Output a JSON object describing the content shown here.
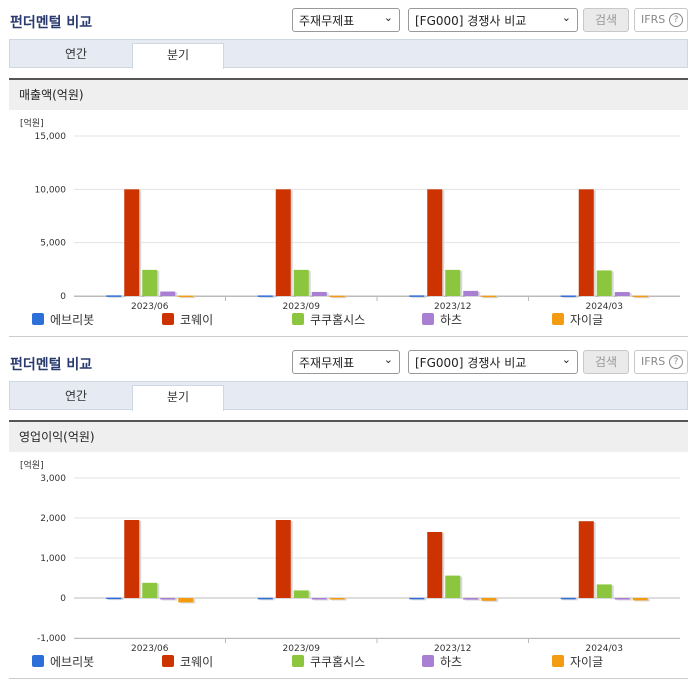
{
  "title": "펀더멘털 비교",
  "controls": {
    "statement_select": "주재무제표",
    "peer_select": "[FG000] 경쟁사 비교",
    "search_button": "검색",
    "ifrs_label": "IFRS",
    "help_glyph": "?"
  },
  "tabs": {
    "annual": "연간",
    "quarterly": "분기",
    "active": "분기"
  },
  "legend": [
    {
      "name": "에브리봇",
      "color": "#2d6fd9"
    },
    {
      "name": "코웨이",
      "color": "#cc3300"
    },
    {
      "name": "쿠쿠홈시스",
      "color": "#8cc63e"
    },
    {
      "name": "하츠",
      "color": "#a87fd3"
    },
    {
      "name": "자이글",
      "color": "#f39c12"
    }
  ],
  "sections": [
    {
      "metric": "매출액(억원)",
      "unit": "[억원]"
    },
    {
      "metric": "영업이익(억원)",
      "unit": "[억원]"
    }
  ],
  "chart_data": [
    {
      "type": "bar",
      "title": "매출액(억원)",
      "ylabel": "[억원]",
      "categories": [
        "2023/06",
        "2023/09",
        "2023/12",
        "2024/03"
      ],
      "ylim": [
        0,
        15000
      ],
      "yticks": [
        0,
        5000,
        10000,
        15000
      ],
      "ytick_labels": [
        "0",
        "5,000",
        "10,000",
        "15,000"
      ],
      "series": [
        {
          "name": "에브리봇",
          "values": [
            60,
            55,
            60,
            50
          ]
        },
        {
          "name": "코웨이",
          "values": [
            10000,
            10000,
            10000,
            10000
          ]
        },
        {
          "name": "쿠쿠홈시스",
          "values": [
            2450,
            2450,
            2450,
            2400
          ]
        },
        {
          "name": "하츠",
          "values": [
            420,
            380,
            480,
            370
          ]
        },
        {
          "name": "자이글",
          "values": [
            40,
            30,
            30,
            30
          ]
        }
      ],
      "grid": true
    },
    {
      "type": "bar",
      "title": "영업이익(억원)",
      "ylabel": "[억원]",
      "categories": [
        "2023/06",
        "2023/09",
        "2023/12",
        "2024/03"
      ],
      "ylim": [
        -1000,
        3000
      ],
      "yticks": [
        -1000,
        0,
        1000,
        2000,
        3000
      ],
      "ytick_labels": [
        "-1,000",
        "0",
        "1,000",
        "2,000",
        "3,000"
      ],
      "series": [
        {
          "name": "에브리봇",
          "values": [
            10,
            5,
            5,
            5
          ]
        },
        {
          "name": "코웨이",
          "values": [
            1950,
            1950,
            1650,
            1920
          ]
        },
        {
          "name": "쿠쿠홈시스",
          "values": [
            380,
            190,
            560,
            340
          ]
        },
        {
          "name": "하츠",
          "values": [
            -30,
            -30,
            -40,
            -30
          ]
        },
        {
          "name": "자이글",
          "values": [
            -110,
            -10,
            -70,
            -60
          ]
        }
      ],
      "grid": true
    }
  ]
}
